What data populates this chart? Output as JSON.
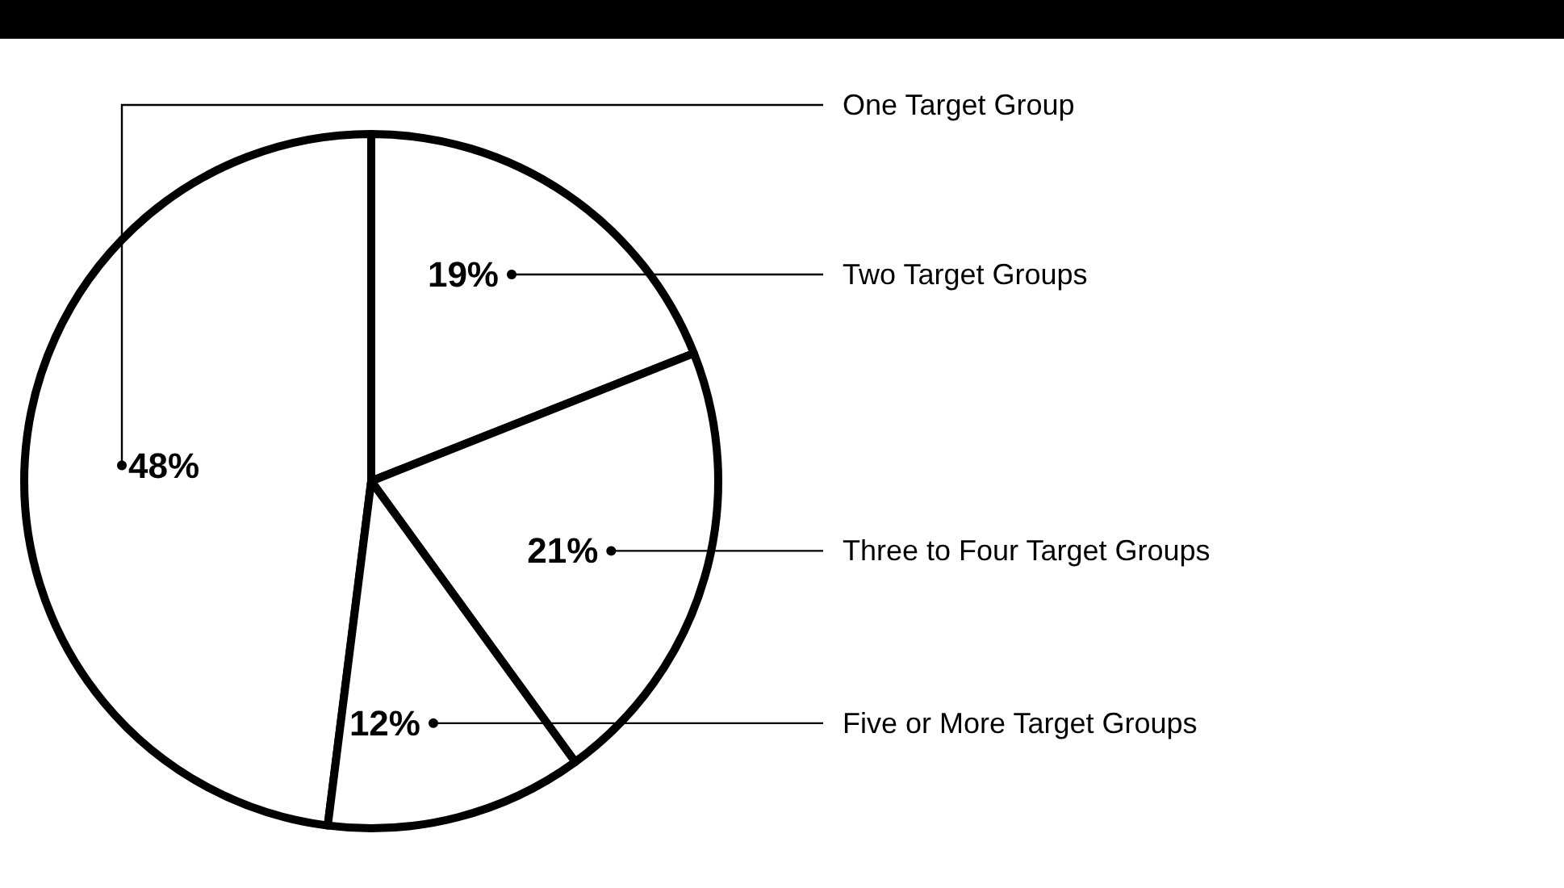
{
  "chart_data": {
    "type": "pie",
    "categories": [
      "One Target Group",
      "Two Target Groups",
      "Three to Four Target Groups",
      "Five or More Target Groups"
    ],
    "values": [
      48,
      19,
      21,
      12
    ],
    "colors": [
      "#ffffff",
      "#ffffff",
      "#ffffff",
      "#ffffff"
    ],
    "value_labels": [
      "48%",
      "19%",
      "21%",
      "12%"
    ]
  }
}
